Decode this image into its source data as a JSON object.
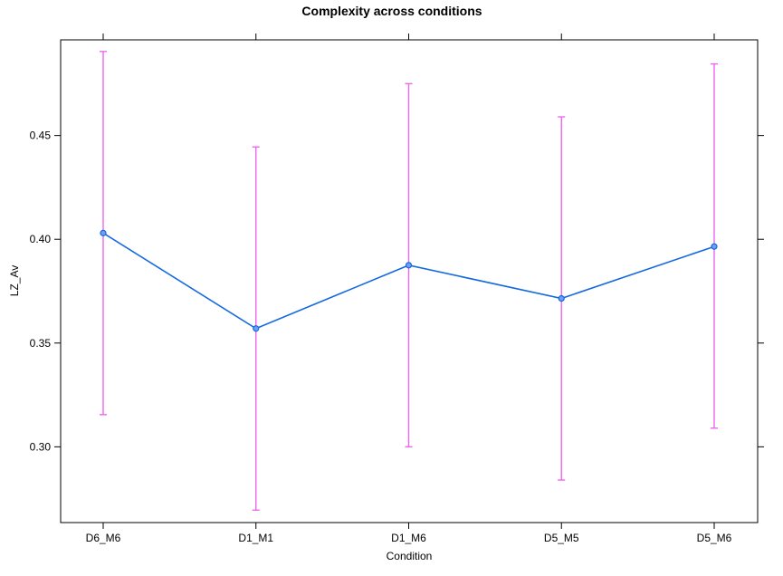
{
  "chart_data": {
    "type": "line",
    "title": "Complexity across conditions",
    "xlabel": "Condition",
    "ylabel": "LZ_Av",
    "categories": [
      "D6_M6",
      "D1_M1",
      "D1_M6",
      "D5_M5",
      "D5_M6"
    ],
    "series": [
      {
        "values": [
          0.403,
          0.357,
          0.3875,
          0.3715,
          0.3965
        ],
        "lower": [
          0.3155,
          0.2695,
          0.3,
          0.284,
          0.309
        ],
        "upper": [
          0.4905,
          0.4445,
          0.475,
          0.459,
          0.4845
        ]
      }
    ],
    "ylim": [
      0.2635,
      0.4961
    ],
    "yticks": [
      0.3,
      0.35,
      0.4,
      0.45
    ],
    "ytick_labels": [
      "0.30",
      "0.35",
      "0.40",
      "0.45"
    ],
    "grid": false,
    "line_color": "#1569e0",
    "errorbar_color": "#ee66ee"
  }
}
